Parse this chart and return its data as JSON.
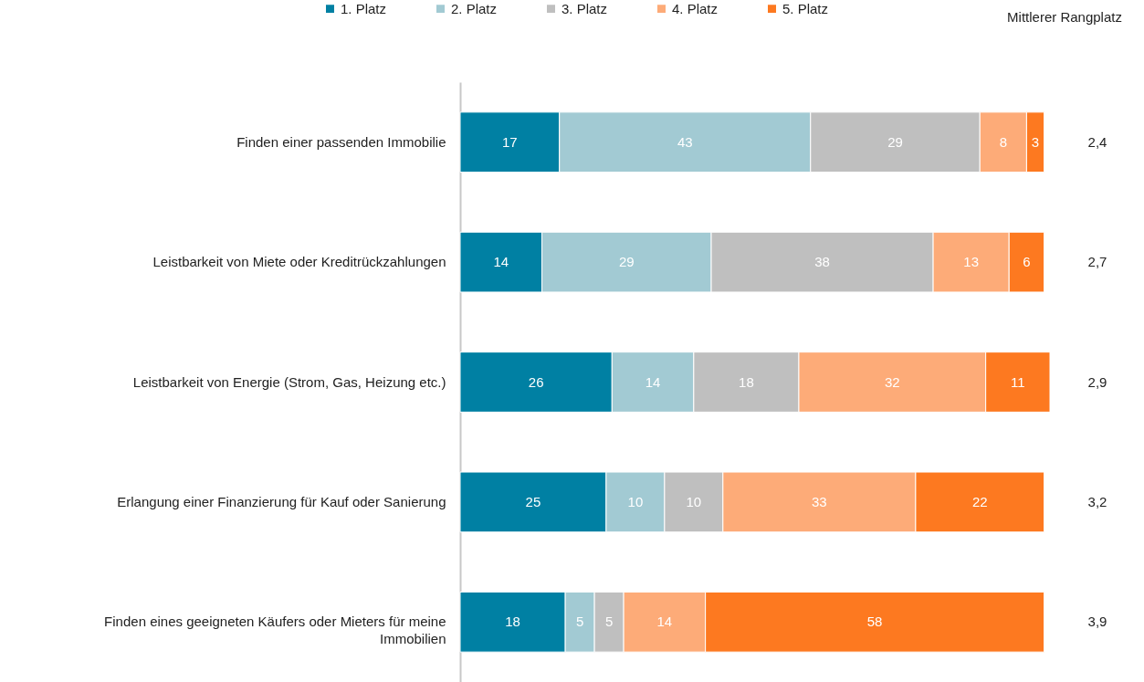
{
  "chart_data": {
    "type": "bar",
    "orientation": "horizontal",
    "stacked": true,
    "data_labels": true,
    "legend": "top",
    "tick_labels": "y",
    "xlim": [
      0,
      101
    ],
    "categories": [
      "Finden einer passenden Immobilie",
      "Leistbarkeit von Miete oder Kreditrückzahlungen",
      "Leistbarkeit von Energie (Strom, Gas, Heizung etc.)",
      "Erlangung einer Finanzierung für Kauf oder Sanierung",
      "Finden eines geeigneten Käufers oder Mieters für meine Immobilien"
    ],
    "series": [
      {
        "name": "1. Platz",
        "color": "#0080a3",
        "values": [
          17,
          14,
          26,
          25,
          18
        ]
      },
      {
        "name": "2. Platz",
        "color": "#a2cad3",
        "values": [
          43,
          29,
          14,
          10,
          5
        ]
      },
      {
        "name": "3. Platz",
        "color": "#bfbfbf",
        "values": [
          29,
          38,
          18,
          10,
          5
        ]
      },
      {
        "name": "4. Platz",
        "color": "#fdab78",
        "values": [
          8,
          13,
          32,
          33,
          14
        ]
      },
      {
        "name": "5. Platz",
        "color": "#fd7920",
        "values": [
          3,
          6,
          11,
          22,
          58
        ]
      }
    ],
    "annotations": [
      "Mittlerer Rangplatz",
      "2,4",
      "2,7",
      "2,9",
      "3,2",
      "3,9"
    ]
  }
}
